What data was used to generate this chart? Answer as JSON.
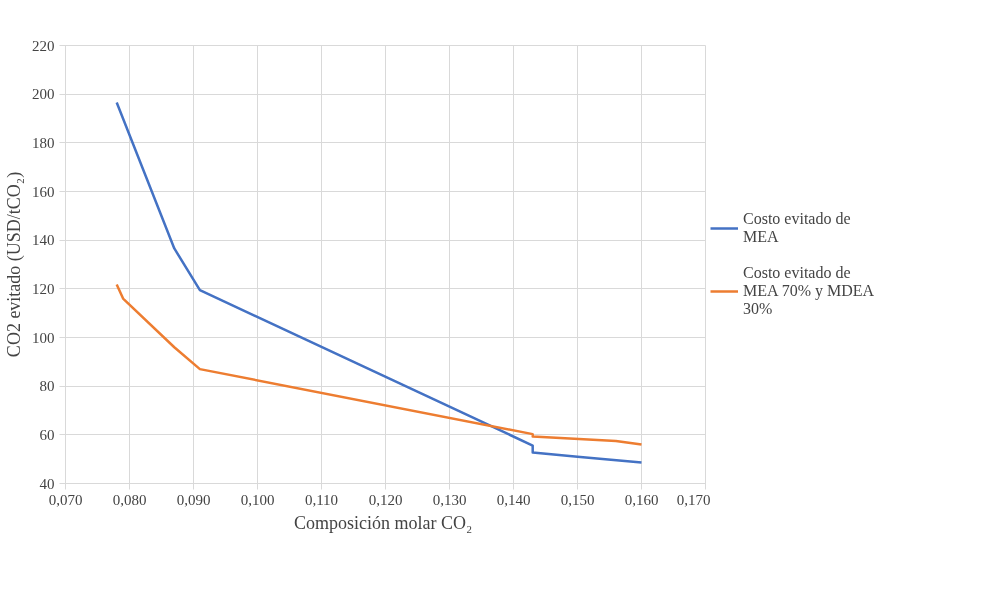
{
  "chart_data": {
    "type": "line",
    "xlabel": "Composición  molar CO₂",
    "ylabel": "CO2 evitado (USD/tCO₂)",
    "xlim": [
      0.07,
      0.17
    ],
    "ylim": [
      40,
      220
    ],
    "xticks": [
      {
        "value": 0.07,
        "label": "0,070"
      },
      {
        "value": 0.08,
        "label": "0,080"
      },
      {
        "value": 0.09,
        "label": "0,090"
      },
      {
        "value": 0.1,
        "label": "0,100"
      },
      {
        "value": 0.11,
        "label": "0,110"
      },
      {
        "value": 0.12,
        "label": "0,120"
      },
      {
        "value": 0.13,
        "label": "0,130"
      },
      {
        "value": 0.14,
        "label": "0,140"
      },
      {
        "value": 0.15,
        "label": "0,150"
      },
      {
        "value": 0.16,
        "label": "0,160"
      },
      {
        "value": 0.17,
        "label": "0,170"
      }
    ],
    "yticks": [
      40,
      60,
      80,
      100,
      120,
      140,
      160,
      180,
      200,
      220
    ],
    "grid": true,
    "legend": "right",
    "line_style": "solid",
    "marker": "none",
    "series": [
      {
        "name": "Costo evitado de MEA",
        "color": "#4472c4",
        "x": [
          0.078,
          0.087,
          0.091,
          0.143,
          0.143,
          0.15,
          0.16
        ],
        "values": [
          196.6,
          136.6,
          119.5,
          55.6,
          52.7,
          51,
          48.6
        ]
      },
      {
        "name": "Costo evitado de MEA 70% y MDEA 30%",
        "color": "#ed7d31",
        "x": [
          0.078,
          0.079,
          0.087,
          0.091,
          0.143,
          0.143,
          0.156,
          0.16
        ],
        "values": [
          121.8,
          116,
          96,
          87,
          60.3,
          59.3,
          57.5,
          56
        ]
      }
    ]
  }
}
